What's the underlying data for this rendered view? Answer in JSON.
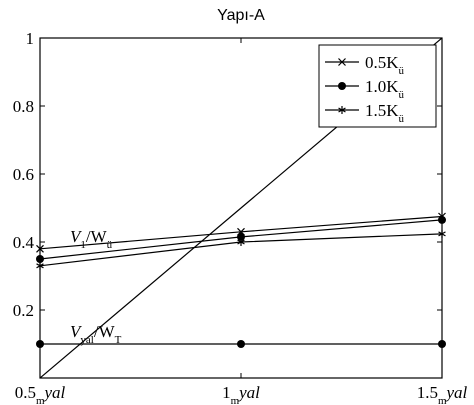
{
  "chart_data": {
    "type": "line",
    "title": "Yapı-A",
    "x": [
      0.5,
      1.0,
      1.5
    ],
    "xlim": [
      0.5,
      1.5
    ],
    "xticks": [
      0.5,
      1.0,
      1.5
    ],
    "x_unit": "m",
    "x_unit_sub": "yal",
    "ylim": [
      0,
      1
    ],
    "yticks": [
      0.2,
      0.4,
      0.6,
      0.8,
      1
    ],
    "legend": "upper right",
    "grid": false,
    "series": [
      {
        "name": "0.5K",
        "name_sub": "ü",
        "marker": "x",
        "color": "#000000",
        "values": [
          0.38,
          0.43,
          0.475
        ]
      },
      {
        "name": "1.0K",
        "name_sub": "ü",
        "marker": "circle",
        "color": "#000000",
        "values": [
          0.35,
          0.415,
          0.465
        ]
      },
      {
        "name": "1.5K",
        "name_sub": "ü",
        "marker": "star",
        "color": "#000000",
        "values": [
          0.33,
          0.4,
          0.424
        ]
      },
      {
        "marker": "circle",
        "color": "#000000",
        "values": [
          0.1,
          0.1,
          0.1
        ]
      },
      {
        "marker": "none",
        "color": "#000000",
        "values": [
          0,
          0.5,
          1
        ]
      }
    ],
    "annotations": [
      {
        "x": 0.5,
        "y": 0.4,
        "parts": [
          "V",
          "1",
          "/W",
          "ü"
        ]
      },
      {
        "x": 0.5,
        "y": 0.12,
        "parts": [
          "V",
          "yal",
          "/W",
          "T"
        ]
      }
    ]
  }
}
